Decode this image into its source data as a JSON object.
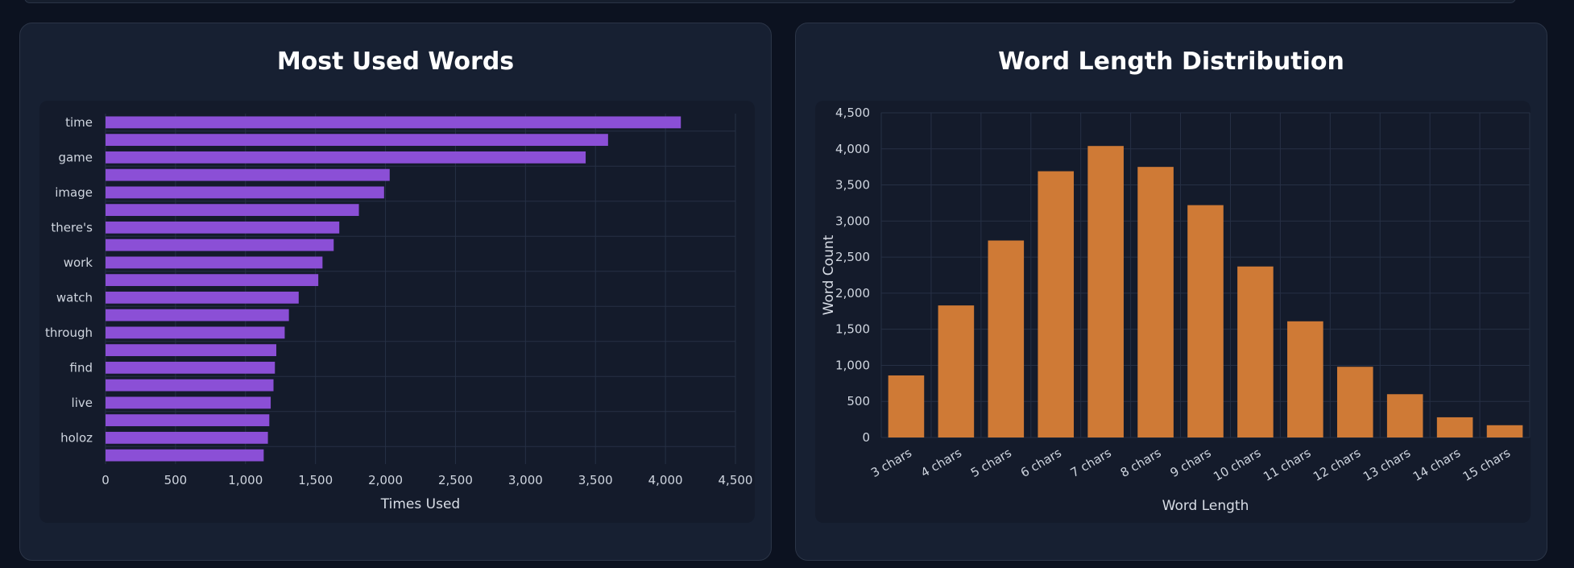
{
  "colors": {
    "bar_words": "#8b4fd6",
    "bar_lengths": "#cf7a36",
    "grid": "#263045",
    "tick_text": "#cfd5df",
    "axis_title": "#d8dde6"
  },
  "charts": [
    {
      "id": "words",
      "title": "Most Used Words",
      "chart_data": {
        "type": "bar",
        "orientation": "horizontal",
        "title": "Most Used Words",
        "xlabel": "Times Used",
        "ylabel": "",
        "xlim": [
          0,
          4500
        ],
        "xticks": [
          0,
          500,
          1000,
          1500,
          2000,
          2500,
          3000,
          3500,
          4000,
          4500
        ],
        "xtick_labels": [
          "0",
          "500",
          "1,000",
          "1,500",
          "2,000",
          "2,500",
          "3,000",
          "3,500",
          "4,000",
          "4,500"
        ],
        "categories": [
          "time",
          "",
          "game",
          "",
          "image",
          "",
          "there's",
          "",
          "work",
          "",
          "watch",
          "",
          "through",
          "",
          "find",
          "",
          "live",
          "",
          "holoz",
          ""
        ],
        "values": [
          4110,
          3590,
          3430,
          2030,
          1990,
          1810,
          1670,
          1630,
          1550,
          1520,
          1380,
          1310,
          1280,
          1220,
          1210,
          1200,
          1180,
          1170,
          1160,
          1130
        ]
      }
    },
    {
      "id": "lengths",
      "title": "Word Length Distribution",
      "chart_data": {
        "type": "bar",
        "orientation": "vertical",
        "title": "Word Length Distribution",
        "xlabel": "Word Length",
        "ylabel": "Word Count",
        "ylim": [
          0,
          4500
        ],
        "yticks": [
          0,
          500,
          1000,
          1500,
          2000,
          2500,
          3000,
          3500,
          4000,
          4500
        ],
        "ytick_labels": [
          "0",
          "500",
          "1,000",
          "1,500",
          "2,000",
          "2,500",
          "3,000",
          "3,500",
          "4,000",
          "4,500"
        ],
        "categories": [
          "3 chars",
          "4 chars",
          "5 chars",
          "6 chars",
          "7 chars",
          "8 chars",
          "9 chars",
          "10 chars",
          "11 chars",
          "12 chars",
          "13 chars",
          "14 chars",
          "15 chars"
        ],
        "values": [
          860,
          1830,
          2730,
          3690,
          4040,
          3750,
          3220,
          2370,
          1610,
          980,
          600,
          280,
          170
        ]
      }
    }
  ]
}
